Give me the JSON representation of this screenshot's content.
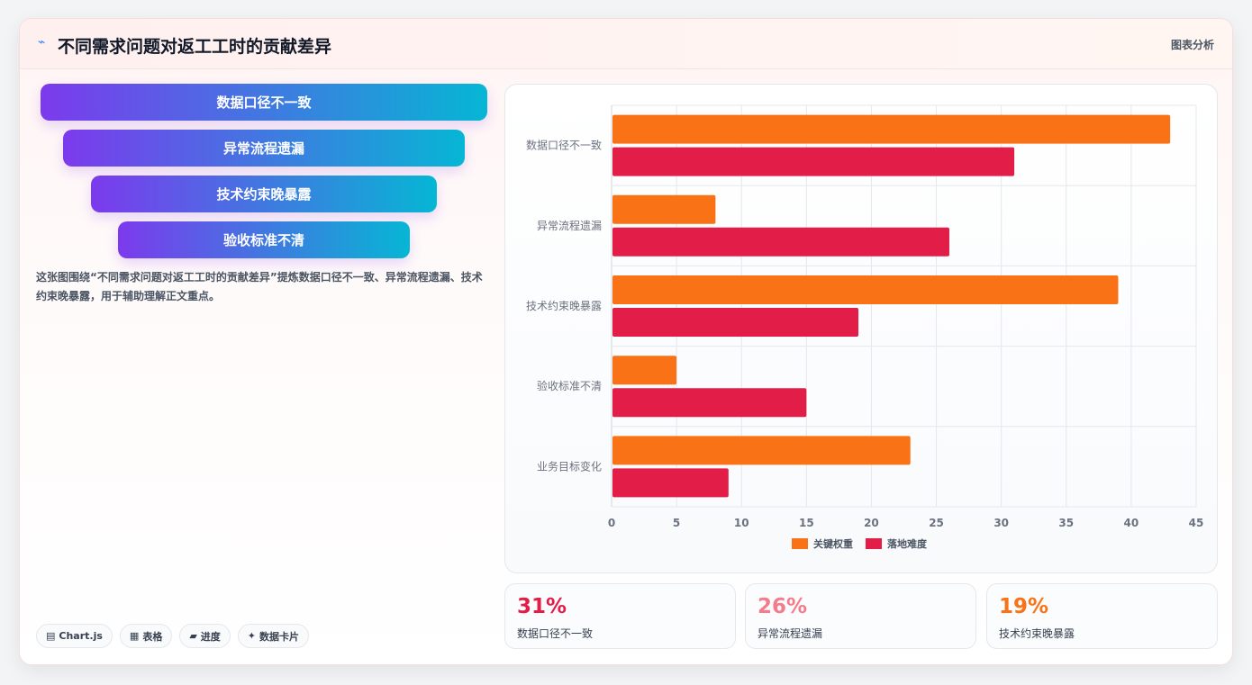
{
  "header": {
    "icon": "activity-icon",
    "title": "不同需求问题对返工工时的贡献差异",
    "right_label": "图表分析"
  },
  "funnel": {
    "items": [
      "数据口径不一致",
      "异常流程遗漏",
      "技术约束晚暴露",
      "验收标准不清"
    ]
  },
  "description": "这张图围绕“不同需求问题对返工工时的贡献差异”提炼数据口径不一致、异常流程遗漏、技术约束晚暴露，用于辅助理解正文重点。",
  "chips": [
    {
      "icon": "chart-icon",
      "label": "Chart.js"
    },
    {
      "icon": "table-icon",
      "label": "表格"
    },
    {
      "icon": "progress-icon",
      "label": "进度"
    },
    {
      "icon": "sparkle-icon",
      "label": "数据卡片"
    }
  ],
  "stats": [
    {
      "value": "31%",
      "label": "数据口径不一致",
      "color": "#e11d48"
    },
    {
      "value": "26%",
      "label": "异常流程遗漏",
      "color": "#f47c8a"
    },
    {
      "value": "19%",
      "label": "技术约束晚暴露",
      "color": "#f97316"
    }
  ],
  "chart_data": {
    "type": "bar",
    "orientation": "horizontal",
    "categories": [
      "数据口径不一致",
      "异常流程遗漏",
      "技术约束晚暴露",
      "验收标准不清",
      "业务目标变化"
    ],
    "series": [
      {
        "name": "关键权重",
        "values": [
          43,
          8,
          39,
          5,
          23
        ],
        "color": "#f97316"
      },
      {
        "name": "落地难度",
        "values": [
          31,
          26,
          19,
          15,
          9
        ],
        "color": "#e11d48"
      }
    ],
    "xlim": [
      0,
      45
    ],
    "xticks": [
      0,
      5,
      10,
      15,
      20,
      25,
      30,
      35,
      40,
      45
    ],
    "grid": true,
    "legend_position": "bottom"
  }
}
